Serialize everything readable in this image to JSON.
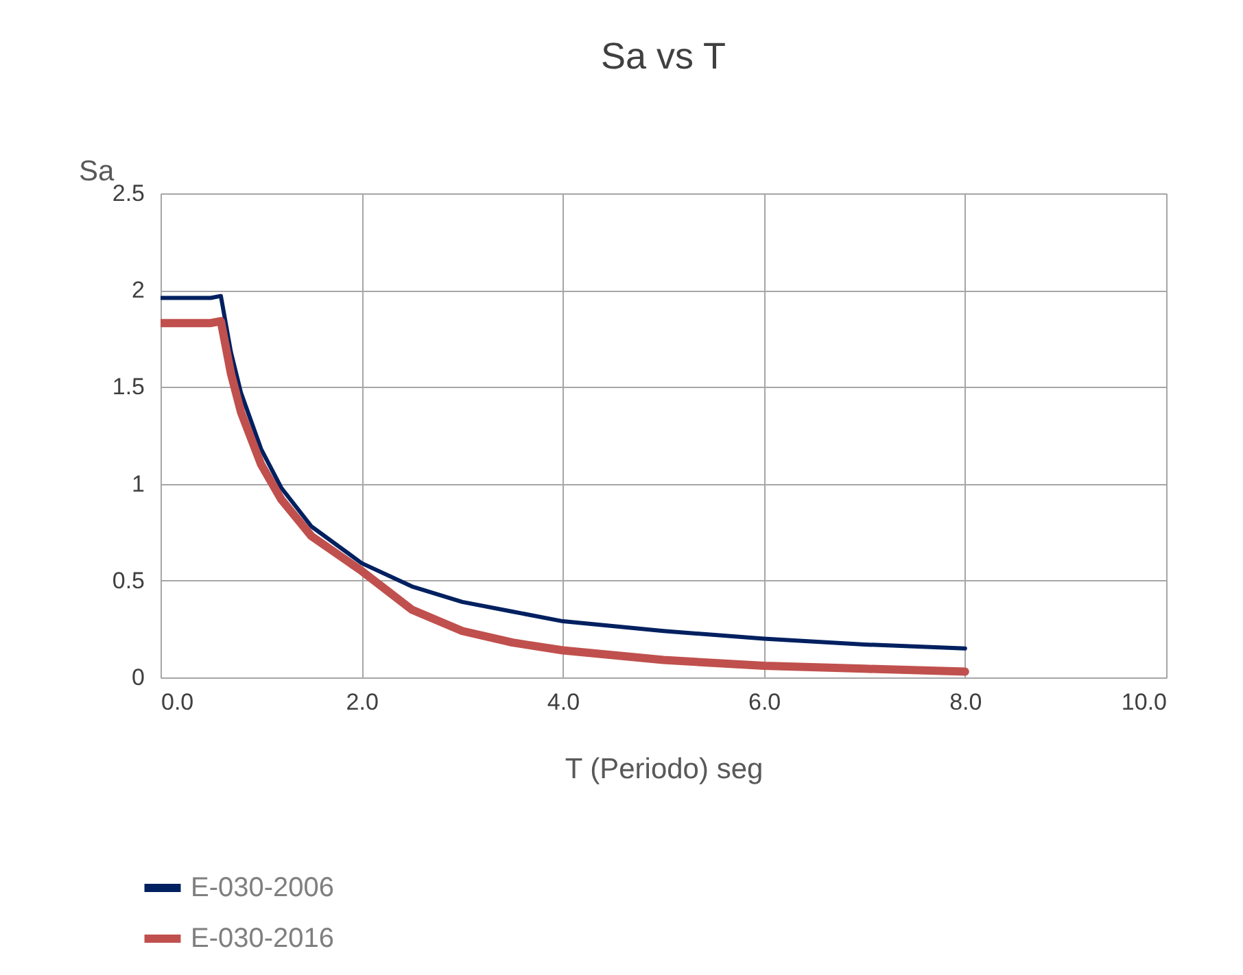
{
  "chart_data": {
    "type": "line",
    "title": "Sa vs T",
    "xlabel": "T (Periodo) seg",
    "ylabel": "Sa",
    "x": [
      0,
      0.5,
      0.6,
      0.7,
      0.8,
      1.0,
      1.2,
      1.5,
      2.0,
      2.5,
      3.0,
      3.5,
      4.0,
      5.0,
      6.0,
      7.0,
      8.0
    ],
    "series": [
      {
        "name": "E-030-2006",
        "color": "#002060",
        "values": [
          1.96,
          1.96,
          1.97,
          1.68,
          1.47,
          1.18,
          0.98,
          0.78,
          0.59,
          0.47,
          0.39,
          0.34,
          0.29,
          0.24,
          0.2,
          0.17,
          0.15
        ]
      },
      {
        "name": "E-030-2016",
        "color": "#c0504d",
        "values": [
          1.83,
          1.83,
          1.84,
          1.57,
          1.37,
          1.1,
          0.92,
          0.73,
          0.55,
          0.35,
          0.24,
          0.18,
          0.14,
          0.09,
          0.06,
          0.045,
          0.03
        ]
      }
    ],
    "xlim": [
      0,
      10
    ],
    "xticks": [
      {
        "value": 0,
        "label": "0.0"
      },
      {
        "value": 2,
        "label": "2.0"
      },
      {
        "value": 4,
        "label": "4.0"
      },
      {
        "value": 6,
        "label": "6.0"
      },
      {
        "value": 8,
        "label": "8.0"
      },
      {
        "value": 10,
        "label": "10.0"
      }
    ],
    "ylim": [
      0,
      2.5
    ],
    "yticks": [
      0,
      0.5,
      1,
      1.5,
      2,
      2.5
    ],
    "grid": true,
    "legend": "bottom left",
    "marker": "none",
    "line_style": "solid"
  }
}
